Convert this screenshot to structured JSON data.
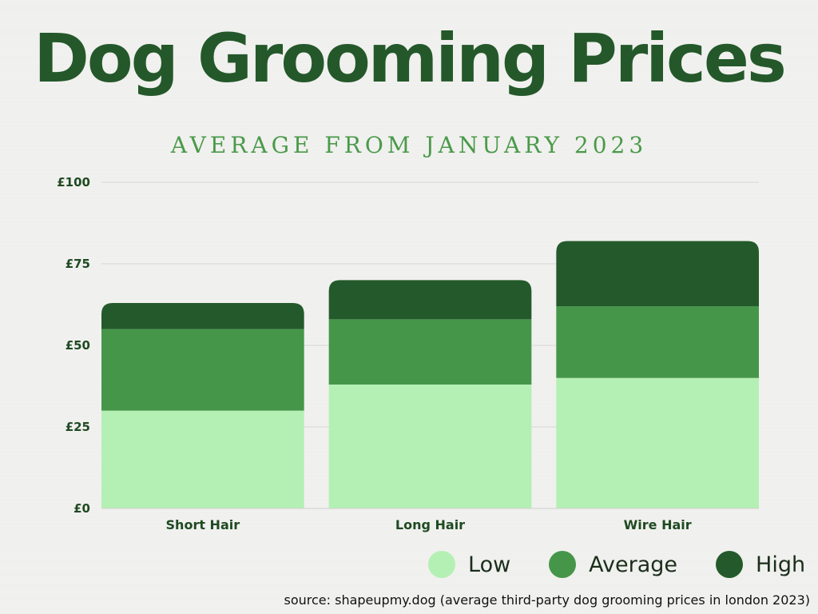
{
  "colors": {
    "title": "#24582a",
    "subtitle": "#4a9a4a",
    "axis_text": "#1f4a22",
    "grid": "#d6d6d6"
  },
  "chart_data": {
    "type": "bar",
    "stacked": true,
    "title": "Dog Grooming Prices",
    "subtitle": "AVERAGE FROM JANUARY 2023",
    "categories": [
      "Short Hair",
      "Long Hair",
      "Wire Hair"
    ],
    "series": [
      {
        "name": "Low",
        "values": [
          30,
          38,
          40
        ],
        "color": "#b4f0b4"
      },
      {
        "name": "Average",
        "values": [
          25,
          20,
          22
        ],
        "color": "#46964a"
      },
      {
        "name": "High",
        "values": [
          8,
          12,
          20
        ],
        "color": "#245a2b"
      }
    ],
    "ylim": [
      0,
      100
    ],
    "yticks": [
      0,
      25,
      50,
      75,
      100
    ],
    "ytick_labels": [
      "£0",
      "£25",
      "£50",
      "£75",
      "£100"
    ],
    "grid": true,
    "legend_position": "bottom-right"
  },
  "source": "source: shapeupmy.dog (average third-party dog grooming prices in london 2023)"
}
